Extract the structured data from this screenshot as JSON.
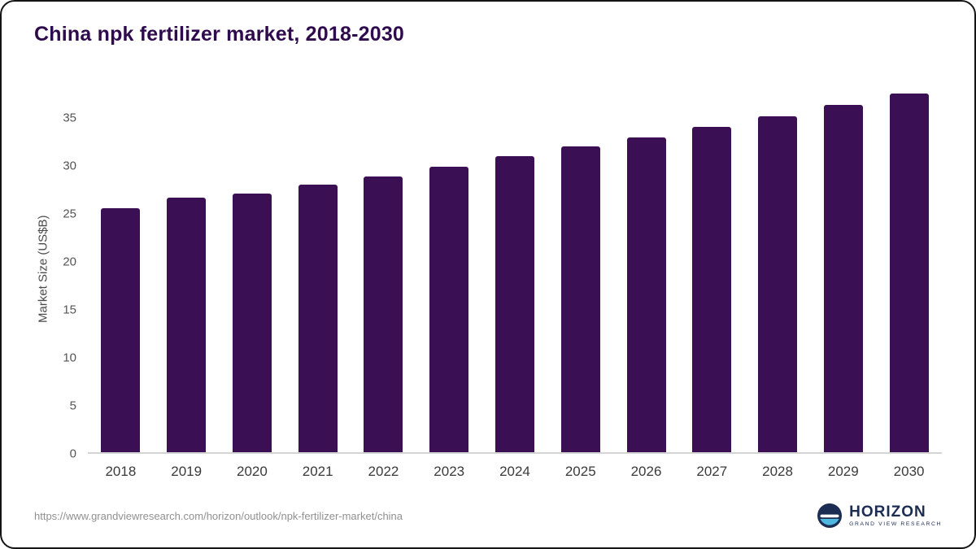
{
  "page": {
    "title": "China npk fertilizer market, 2018-2030"
  },
  "chart_data": {
    "type": "bar",
    "title": "China npk fertilizer market, 2018-2030",
    "categories": [
      "2018",
      "2019",
      "2020",
      "2021",
      "2022",
      "2023",
      "2024",
      "2025",
      "2026",
      "2027",
      "2028",
      "2029",
      "2030"
    ],
    "values": [
      25.6,
      26.7,
      27.1,
      28.0,
      28.9,
      29.9,
      31.0,
      32.0,
      33.0,
      34.1,
      35.2,
      36.4,
      37.6
    ],
    "xlabel": "",
    "ylabel": "Market Size (US$B)",
    "ylim": [
      0,
      38.6
    ],
    "yticks": [
      0,
      5,
      10,
      15,
      20,
      25,
      30,
      35
    ],
    "grid": false,
    "legend": false,
    "bar_color": "#3b0f54"
  },
  "footer": {
    "source_url": "https://www.grandviewresearch.com/horizon/outlook/npk-fertilizer-market/china",
    "logo": {
      "name": "HORIZON",
      "subtitle": "GRAND VIEW RESEARCH"
    }
  },
  "colors": {
    "title": "#2f0b4d",
    "bar": "#3b0f54",
    "axis_line": "#d4d4d4",
    "logo_navy": "#1c2d53",
    "logo_teal": "#4fb8e0"
  }
}
